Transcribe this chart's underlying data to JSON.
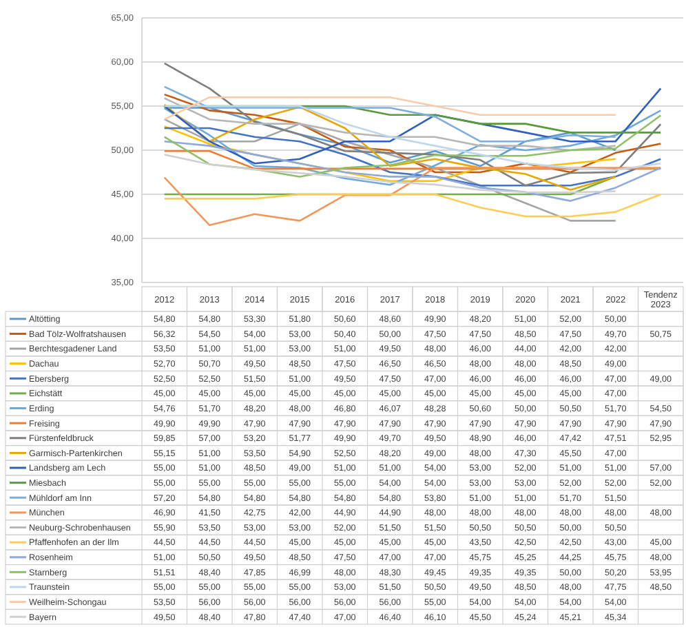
{
  "chart_data": {
    "type": "line",
    "categories": [
      "2012",
      "2013",
      "2014",
      "2015",
      "2016",
      "2017",
      "2018",
      "2019",
      "2020",
      "2021",
      "2022",
      "Tendenz 2023"
    ],
    "ylim": [
      35,
      65
    ],
    "yticks": [
      {
        "value": 35,
        "label": "35,00"
      },
      {
        "value": 40,
        "label": "40,00"
      },
      {
        "value": 45,
        "label": "45,00"
      },
      {
        "value": 50,
        "label": "50,00"
      },
      {
        "value": 55,
        "label": "55,00"
      },
      {
        "value": 60,
        "label": "60,00"
      },
      {
        "value": 65,
        "label": "65,00"
      }
    ],
    "grid": "y",
    "legend": "bottom",
    "marker": "none",
    "line_style": "solid",
    "series": [
      {
        "name": "Altötting",
        "color": "#5b9bd5",
        "values": [
          54.8,
          54.8,
          53.3,
          51.8,
          50.6,
          48.6,
          49.9,
          48.2,
          51.0,
          52.0,
          50.0,
          null
        ],
        "value_labels": [
          "54,80",
          "54,80",
          "53,30",
          "51,80",
          "50,60",
          "48,60",
          "49,90",
          "48,20",
          "51,00",
          "52,00",
          "50,00",
          null
        ]
      },
      {
        "name": "Bad Tölz-Wolfratshausen",
        "color": "#c55a11",
        "values": [
          56.32,
          54.5,
          54.0,
          53.0,
          50.4,
          50.0,
          47.5,
          47.5,
          48.5,
          47.5,
          49.7,
          50.75
        ],
        "value_labels": [
          "56,32",
          "54,50",
          "54,00",
          "53,00",
          "50,40",
          "50,00",
          "47,50",
          "47,50",
          "48,50",
          "47,50",
          "49,70",
          "50,75"
        ]
      },
      {
        "name": "Berchtesgadener Land",
        "color": "#a5a5a5",
        "values": [
          53.5,
          51.0,
          51.0,
          53.0,
          51.0,
          49.5,
          48.0,
          46.0,
          44.0,
          42.0,
          42.0,
          null
        ],
        "value_labels": [
          "53,50",
          "51,00",
          "51,00",
          "53,00",
          "51,00",
          "49,50",
          "48,00",
          "46,00",
          "44,00",
          "42,00",
          "42,00",
          null
        ]
      },
      {
        "name": "Dachau",
        "color": "#ffc000",
        "values": [
          52.7,
          50.7,
          49.5,
          48.5,
          47.5,
          46.5,
          46.5,
          48.0,
          48.0,
          48.5,
          49.0,
          null
        ],
        "value_labels": [
          "52,70",
          "50,70",
          "49,50",
          "48,50",
          "47,50",
          "46,50",
          "46,50",
          "48,00",
          "48,00",
          "48,50",
          "49,00",
          null
        ]
      },
      {
        "name": "Ebersberg",
        "color": "#4472c4",
        "values": [
          52.5,
          52.5,
          51.5,
          51.0,
          49.5,
          47.5,
          47.0,
          46.0,
          46.0,
          46.0,
          47.0,
          49.0
        ],
        "value_labels": [
          "52,50",
          "52,50",
          "51,50",
          "51,00",
          "49,50",
          "47,50",
          "47,00",
          "46,00",
          "46,00",
          "46,00",
          "47,00",
          "49,00"
        ]
      },
      {
        "name": "Eichstätt",
        "color": "#70ad47",
        "values": [
          45.0,
          45.0,
          45.0,
          45.0,
          45.0,
          45.0,
          45.0,
          45.0,
          45.0,
          45.0,
          47.0,
          null
        ],
        "value_labels": [
          "45,00",
          "45,00",
          "45,00",
          "45,00",
          "45,00",
          "45,00",
          "45,00",
          "45,00",
          "45,00",
          "45,00",
          "47,00",
          null
        ]
      },
      {
        "name": "Erding",
        "color": "#6fa8dc",
        "values": [
          54.76,
          51.7,
          48.2,
          48.0,
          46.8,
          46.07,
          48.28,
          50.6,
          50.0,
          50.5,
          51.7,
          54.5
        ],
        "value_labels": [
          "54,76",
          "51,70",
          "48,20",
          "48,00",
          "46,80",
          "46,07",
          "48,28",
          "50,60",
          "50,00",
          "50,50",
          "51,70",
          "54,50"
        ]
      },
      {
        "name": "Freising",
        "color": "#ed7d31",
        "values": [
          49.9,
          49.9,
          47.9,
          47.9,
          47.9,
          47.9,
          47.9,
          47.9,
          47.9,
          47.9,
          47.9,
          47.9
        ],
        "value_labels": [
          "49,90",
          "49,90",
          "47,90",
          "47,90",
          "47,90",
          "47,90",
          "47,90",
          "47,90",
          "47,90",
          "47,90",
          "47,90",
          "47,90"
        ]
      },
      {
        "name": "Fürstenfeldbruck",
        "color": "#7f7f7f",
        "values": [
          59.85,
          57.0,
          53.2,
          51.77,
          49.9,
          49.7,
          49.5,
          48.9,
          46.0,
          47.42,
          47.51,
          52.95
        ],
        "value_labels": [
          "59,85",
          "57,00",
          "53,20",
          "51,77",
          "49,90",
          "49,70",
          "49,50",
          "48,90",
          "46,00",
          "47,42",
          "47,51",
          "52,95"
        ]
      },
      {
        "name": "Garmisch-Partenkirchen",
        "color": "#e6a800",
        "values": [
          55.15,
          51.0,
          53.5,
          54.9,
          52.5,
          48.2,
          49.0,
          48.0,
          47.3,
          45.5,
          47.0,
          null
        ],
        "value_labels": [
          "55,15",
          "51,00",
          "53,50",
          "54,90",
          "52,50",
          "48,20",
          "49,00",
          "48,00",
          "47,30",
          "45,50",
          "47,00",
          null
        ]
      },
      {
        "name": "Landsberg am Lech",
        "color": "#2f5fbf",
        "values": [
          55.0,
          51.0,
          48.5,
          49.0,
          51.0,
          51.0,
          54.0,
          53.0,
          52.0,
          51.0,
          51.0,
          57.0
        ],
        "value_labels": [
          "55,00",
          "51,00",
          "48,50",
          "49,00",
          "51,00",
          "51,00",
          "54,00",
          "53,00",
          "52,00",
          "51,00",
          "51,00",
          "57,00"
        ]
      },
      {
        "name": "Miesbach",
        "color": "#5a9a3a",
        "values": [
          55.0,
          55.0,
          55.0,
          55.0,
          55.0,
          54.0,
          54.0,
          53.0,
          53.0,
          52.0,
          52.0,
          52.0
        ],
        "value_labels": [
          "55,00",
          "55,00",
          "55,00",
          "55,00",
          "55,00",
          "54,00",
          "54,00",
          "53,00",
          "53,00",
          "52,00",
          "52,00",
          "52,00"
        ]
      },
      {
        "name": "Mühldorf am Inn",
        "color": "#7cafdd",
        "values": [
          57.2,
          54.8,
          54.8,
          54.8,
          54.8,
          54.8,
          53.8,
          51.0,
          51.0,
          51.7,
          51.5,
          null
        ],
        "value_labels": [
          "57,20",
          "54,80",
          "54,80",
          "54,80",
          "54,80",
          "54,80",
          "53,80",
          "51,00",
          "51,00",
          "51,70",
          "51,50",
          null
        ]
      },
      {
        "name": "München",
        "color": "#f1975a",
        "values": [
          46.9,
          41.5,
          42.75,
          42.0,
          44.9,
          44.9,
          48.0,
          48.0,
          48.0,
          48.0,
          48.0,
          48.0
        ],
        "value_labels": [
          "46,90",
          "41,50",
          "42,75",
          "42,00",
          "44,90",
          "44,90",
          "48,00",
          "48,00",
          "48,00",
          "48,00",
          "48,00",
          "48,00"
        ]
      },
      {
        "name": "Neuburg-Schrobenhausen",
        "color": "#b7b7b7",
        "values": [
          55.9,
          53.5,
          53.0,
          53.0,
          52.0,
          51.5,
          51.5,
          50.5,
          50.5,
          50.0,
          50.5,
          null
        ],
        "value_labels": [
          "55,90",
          "53,50",
          "53,00",
          "53,00",
          "52,00",
          "51,50",
          "51,50",
          "50,50",
          "50,50",
          "50,00",
          "50,50",
          null
        ]
      },
      {
        "name": "Pfaffenhofen an der Ilm",
        "color": "#ffcd55",
        "values": [
          44.5,
          44.5,
          44.5,
          45.0,
          45.0,
          45.0,
          45.0,
          43.5,
          42.5,
          42.5,
          43.0,
          45.0
        ],
        "value_labels": [
          "44,50",
          "44,50",
          "44,50",
          "45,00",
          "45,00",
          "45,00",
          "45,00",
          "43,50",
          "42,50",
          "42,50",
          "43,00",
          "45,00"
        ]
      },
      {
        "name": "Rosenheim",
        "color": "#8ea9db",
        "values": [
          51.0,
          50.5,
          49.5,
          48.5,
          47.5,
          47.0,
          47.0,
          45.75,
          45.25,
          44.25,
          45.75,
          48.0
        ],
        "value_labels": [
          "51,00",
          "50,50",
          "49,50",
          "48,50",
          "47,50",
          "47,00",
          "47,00",
          "45,75",
          "45,25",
          "44,25",
          "45,75",
          "48,00"
        ]
      },
      {
        "name": "Starnberg",
        "color": "#8cc168",
        "values": [
          51.51,
          48.4,
          47.85,
          46.99,
          48.0,
          48.3,
          49.45,
          49.35,
          49.35,
          50.0,
          50.2,
          53.95
        ],
        "value_labels": [
          "51,51",
          "48,40",
          "47,85",
          "46,99",
          "48,00",
          "48,30",
          "49,45",
          "49,35",
          "49,35",
          "50,00",
          "50,20",
          "53,95"
        ]
      },
      {
        "name": "Traunstein",
        "color": "#bdd7ee",
        "values": [
          55.0,
          55.0,
          55.0,
          55.0,
          53.0,
          51.5,
          50.5,
          49.5,
          48.5,
          48.0,
          47.75,
          48.5
        ],
        "value_labels": [
          "55,00",
          "55,00",
          "55,00",
          "55,00",
          "53,00",
          "51,50",
          "50,50",
          "49,50",
          "48,50",
          "48,00",
          "47,75",
          "48,50"
        ]
      },
      {
        "name": "Weilheim-Schongau",
        "color": "#f8cbad",
        "values": [
          53.5,
          56.0,
          56.0,
          56.0,
          56.0,
          56.0,
          55.0,
          54.0,
          54.0,
          54.0,
          54.0,
          null
        ],
        "value_labels": [
          "53,50",
          "56,00",
          "56,00",
          "56,00",
          "56,00",
          "56,00",
          "55,00",
          "54,00",
          "54,00",
          "54,00",
          "54,00",
          null
        ]
      },
      {
        "name": "Bayern",
        "color": "#d0d0d0",
        "values": [
          49.5,
          48.4,
          47.8,
          47.4,
          47.0,
          46.4,
          46.1,
          45.5,
          45.24,
          45.21,
          45.34,
          null
        ],
        "value_labels": [
          "49,50",
          "48,40",
          "47,80",
          "47,40",
          "47,00",
          "46,40",
          "46,10",
          "45,50",
          "45,24",
          "45,21",
          "45,34",
          null
        ]
      }
    ]
  }
}
